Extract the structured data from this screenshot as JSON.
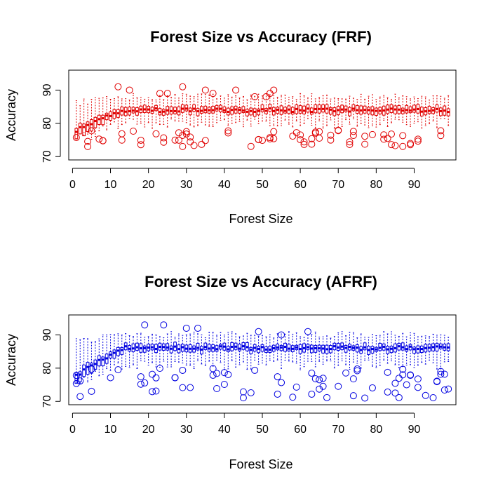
{
  "figure": {
    "background": "#ffffff"
  },
  "chart_data": [
    {
      "type": "boxplot",
      "title": "Forest Size vs Accuracy (FRF)",
      "xlabel": "Forest Size",
      "ylabel": "Accuracy",
      "color": "#e00000",
      "xlim": [
        -1,
        101
      ],
      "ylim": [
        69,
        96
      ],
      "x_ticks": [
        0,
        10,
        20,
        30,
        40,
        50,
        60,
        70,
        80,
        90
      ],
      "y_ticks": [
        70,
        80,
        90
      ],
      "grid": false,
      "legend": "none",
      "approx_summary": {
        "forest_size_range": [
          1,
          99
        ],
        "median_forest_size_1": 78,
        "median_plateau": 84,
        "q1_plateau": 83,
        "q3_plateau": 85,
        "whisker_low_plateau": 80,
        "whisker_high_plateau": 88,
        "outlier_low_range": [
          73,
          78
        ],
        "outlier_high_values": [
          91,
          90,
          89,
          89,
          91,
          90,
          89,
          90,
          88,
          88,
          89,
          90
        ]
      }
    },
    {
      "type": "boxplot",
      "title": "Forest Size vs Accuracy (AFRF)",
      "xlabel": "Forest Size",
      "ylabel": "Accuracy",
      "color": "#0000e0",
      "xlim": [
        -1,
        101
      ],
      "ylim": [
        69,
        96
      ],
      "x_ticks": [
        0,
        10,
        20,
        30,
        40,
        50,
        60,
        70,
        80,
        90
      ],
      "y_ticks": [
        70,
        80,
        90
      ],
      "grid": false,
      "legend": "none",
      "approx_summary": {
        "forest_size_range": [
          1,
          99
        ],
        "median_forest_size_1": 78,
        "median_plateau": 86,
        "q1_plateau": 85,
        "q3_plateau": 87,
        "whisker_low_plateau": 81,
        "whisker_high_plateau": 90,
        "outlier_low_range": [
          71,
          80
        ],
        "outlier_high_values": [
          93,
          93,
          92,
          92,
          91,
          90,
          91
        ]
      }
    }
  ]
}
